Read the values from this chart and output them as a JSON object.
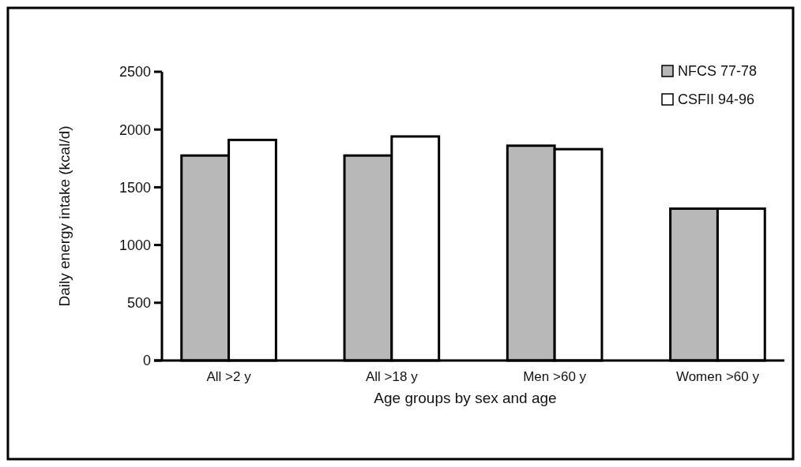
{
  "chart_data": {
    "type": "bar",
    "xlabel": "Age groups by sex and age",
    "ylabel": "Daily energy intake (kcal/d)",
    "categories": [
      "All >2 y",
      "All >18 y",
      "Men >60 y",
      "Women >60 y"
    ],
    "series": [
      {
        "name": "NFCS 77-78",
        "color": "#b8b8b8",
        "values": [
          1775,
          1775,
          1860,
          1315
        ]
      },
      {
        "name": "CSFII 94-96",
        "color": "#ffffff",
        "values": [
          1910,
          1940,
          1830,
          1315
        ]
      }
    ],
    "ylim": [
      0,
      2500
    ],
    "yticks": [
      0,
      500,
      1000,
      1500,
      2000,
      2500
    ],
    "legend": "top right",
    "grid": false
  }
}
